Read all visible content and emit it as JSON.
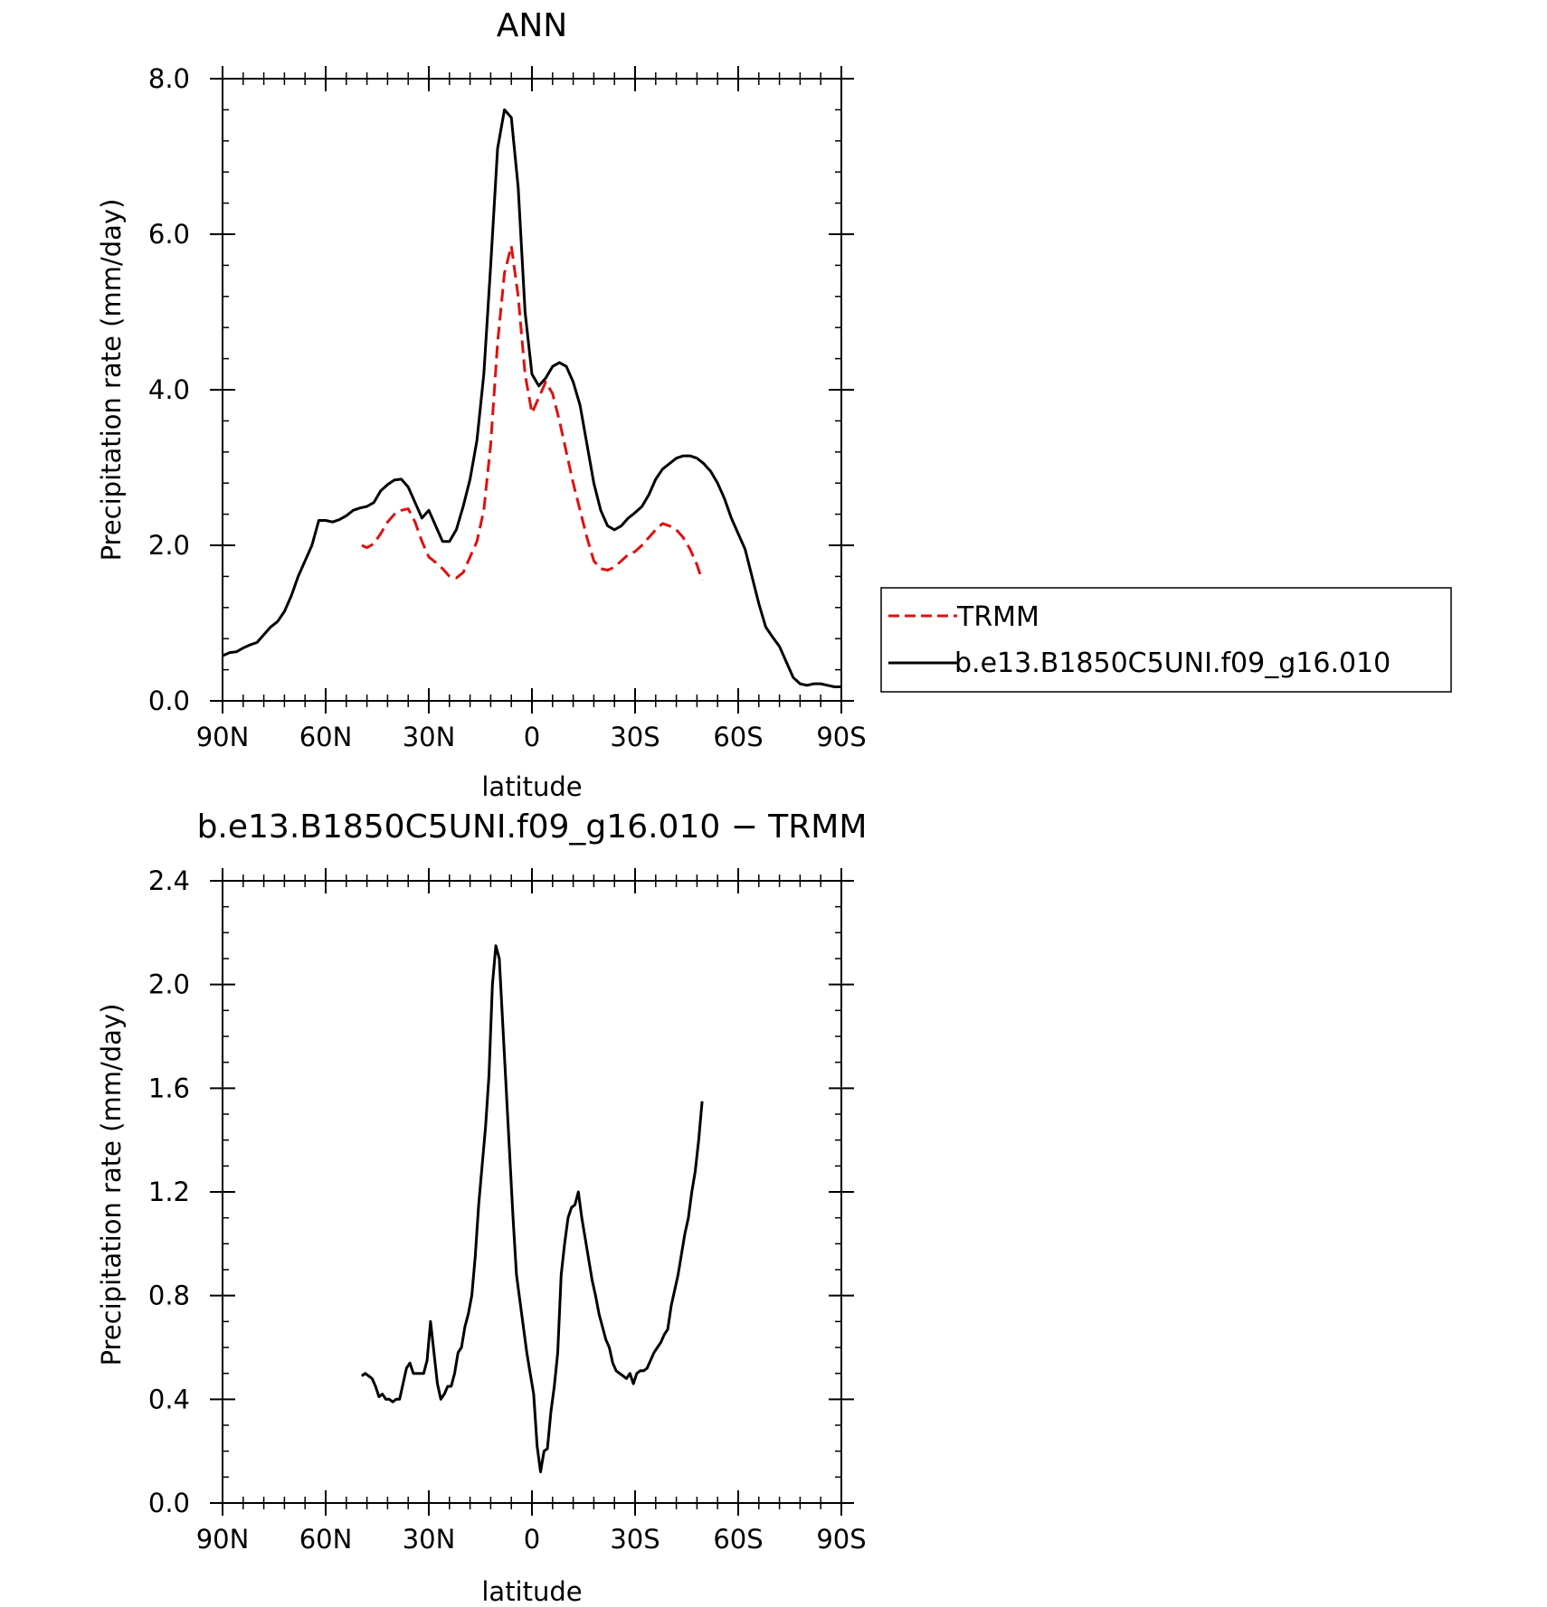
{
  "chart_data": [
    {
      "type": "line",
      "title": "ANN",
      "xlabel": "latitude",
      "ylabel": "Precipitation rate (mm/day)",
      "xlim": [
        90,
        -90
      ],
      "ylim": [
        0,
        8
      ],
      "x_ticks": [
        90,
        60,
        30,
        0,
        -30,
        -60,
        -90
      ],
      "x_tick_labels": [
        "90N",
        "60N",
        "30N",
        "0",
        "30S",
        "60S",
        "90S"
      ],
      "y_ticks": [
        0,
        2,
        4,
        6,
        8
      ],
      "y_tick_labels": [
        "0.0",
        "2.0",
        "4.0",
        "6.0",
        "8.0"
      ],
      "grid": false,
      "legend_position": "right",
      "series": [
        {
          "name": "TRMM",
          "color": "#e01010",
          "style": "dashed",
          "x": [
            49.5,
            48,
            46,
            44,
            42,
            40,
            38,
            36,
            34,
            32,
            30,
            28,
            26,
            24,
            22,
            20,
            18,
            16,
            14,
            12,
            10,
            8,
            6,
            4,
            2,
            0,
            -2,
            -4,
            -6,
            -8,
            -10,
            -12,
            -14,
            -16,
            -18,
            -20,
            -22,
            -24,
            -26,
            -28,
            -30,
            -32,
            -34,
            -36,
            -38,
            -40,
            -42,
            -44,
            -46,
            -48,
            -49.5
          ],
          "y": [
            2.0,
            1.97,
            2.02,
            2.15,
            2.3,
            2.4,
            2.45,
            2.47,
            2.3,
            2.05,
            1.85,
            1.78,
            1.7,
            1.6,
            1.58,
            1.65,
            1.85,
            2.05,
            2.45,
            3.3,
            4.6,
            5.5,
            5.85,
            5.2,
            4.2,
            3.7,
            3.9,
            4.1,
            3.95,
            3.6,
            3.2,
            2.8,
            2.45,
            2.1,
            1.8,
            1.7,
            1.68,
            1.72,
            1.8,
            1.88,
            1.92,
            2.0,
            2.1,
            2.2,
            2.28,
            2.25,
            2.2,
            2.1,
            1.95,
            1.75,
            1.55
          ]
        },
        {
          "name": "b.e13.B1850C5UNI.f09_g16.010",
          "color": "#000000",
          "style": "solid",
          "x": [
            90,
            88,
            86,
            84,
            82,
            80,
            78,
            76,
            74,
            72,
            70,
            68,
            66,
            64,
            62,
            60,
            58,
            56,
            54,
            52,
            50,
            48,
            46,
            44,
            42,
            40,
            38,
            36,
            34,
            32,
            30,
            28,
            26,
            24,
            22,
            20,
            18,
            16,
            14,
            12,
            10,
            8,
            6,
            4,
            2,
            0,
            -2,
            -4,
            -6,
            -8,
            -10,
            -12,
            -14,
            -16,
            -18,
            -20,
            -22,
            -24,
            -26,
            -28,
            -30,
            -32,
            -34,
            -36,
            -38,
            -40,
            -42,
            -44,
            -46,
            -48,
            -50,
            -52,
            -54,
            -56,
            -58,
            -60,
            -62,
            -64,
            -66,
            -68,
            -70,
            -72,
            -74,
            -76,
            -78,
            -80,
            -82,
            -84,
            -86,
            -88,
            -90
          ],
          "y": [
            0.58,
            0.62,
            0.63,
            0.68,
            0.72,
            0.75,
            0.85,
            0.95,
            1.02,
            1.15,
            1.35,
            1.6,
            1.8,
            2.0,
            2.32,
            2.32,
            2.3,
            2.33,
            2.38,
            2.45,
            2.48,
            2.5,
            2.55,
            2.7,
            2.78,
            2.84,
            2.85,
            2.75,
            2.55,
            2.35,
            2.45,
            2.25,
            2.05,
            2.05,
            2.2,
            2.5,
            2.85,
            3.35,
            4.2,
            5.6,
            7.1,
            7.6,
            7.5,
            6.6,
            5.0,
            4.2,
            4.05,
            4.15,
            4.3,
            4.35,
            4.3,
            4.1,
            3.8,
            3.3,
            2.8,
            2.45,
            2.25,
            2.2,
            2.25,
            2.35,
            2.42,
            2.5,
            2.65,
            2.85,
            2.98,
            3.05,
            3.12,
            3.15,
            3.15,
            3.12,
            3.05,
            2.95,
            2.8,
            2.6,
            2.35,
            2.15,
            1.95,
            1.6,
            1.25,
            0.95,
            0.82,
            0.7,
            0.5,
            0.3,
            0.22,
            0.2,
            0.22,
            0.22,
            0.2,
            0.18,
            0.18
          ]
        }
      ]
    },
    {
      "type": "line",
      "title": "b.e13.B1850C5UNI.f09_g16.010 − TRMM",
      "xlabel": "latitude",
      "ylabel": "Precipitation rate (mm/day)",
      "xlim": [
        90,
        -90
      ],
      "ylim": [
        0,
        2.4
      ],
      "x_ticks": [
        90,
        60,
        30,
        0,
        -30,
        -60,
        -90
      ],
      "x_tick_labels": [
        "90N",
        "60N",
        "30N",
        "0",
        "30S",
        "60S",
        "90S"
      ],
      "y_ticks": [
        0,
        0.4,
        0.8,
        1.2,
        1.6,
        2.0,
        2.4
      ],
      "y_tick_labels": [
        "0.0",
        "0.4",
        "0.8",
        "1.2",
        "1.6",
        "2.0",
        "2.4"
      ],
      "grid": false,
      "series": [
        {
          "color": "#000000",
          "style": "solid",
          "x": [
            49.5,
            48.5,
            47.5,
            46.5,
            45.5,
            44.5,
            43.5,
            42.5,
            41.5,
            40.5,
            39.5,
            38.5,
            37.5,
            36.5,
            35.5,
            34.5,
            33.5,
            32.5,
            31.5,
            30.5,
            29.5,
            28.5,
            27.5,
            26.5,
            25.5,
            24.5,
            23.5,
            22.5,
            21.5,
            20.5,
            19.5,
            18.5,
            17.5,
            16.5,
            15.5,
            14.5,
            13.5,
            12.5,
            11.5,
            10.5,
            9.5,
            8.5,
            7.5,
            6.5,
            5.5,
            4.5,
            3.5,
            2.5,
            1.5,
            0.5,
            -0.5,
            -1.5,
            -2.5,
            -3.5,
            -4.5,
            -5.5,
            -6.5,
            -7.5,
            -8.5,
            -9.5,
            -10.5,
            -11.5,
            -12.5,
            -13.5,
            -14.5,
            -15.5,
            -16.5,
            -17.5,
            -18.5,
            -19.5,
            -20.5,
            -21.5,
            -22.5,
            -23.5,
            -24.5,
            -25.5,
            -26.5,
            -27.5,
            -28.5,
            -29.5,
            -30.5,
            -31.5,
            -32.5,
            -33.5,
            -34.5,
            -35.5,
            -36.5,
            -37.5,
            -38.5,
            -39.5,
            -40.5,
            -41.5,
            -42.5,
            -43.5,
            -44.5,
            -45.5,
            -46.5,
            -47.5,
            -48.5,
            -49.5
          ],
          "y": [
            0.49,
            0.5,
            0.49,
            0.48,
            0.45,
            0.41,
            0.42,
            0.4,
            0.4,
            0.39,
            0.4,
            0.4,
            0.46,
            0.52,
            0.54,
            0.5,
            0.5,
            0.5,
            0.5,
            0.55,
            0.7,
            0.58,
            0.46,
            0.4,
            0.42,
            0.45,
            0.45,
            0.5,
            0.58,
            0.6,
            0.68,
            0.73,
            0.8,
            0.95,
            1.15,
            1.3,
            1.45,
            1.65,
            2.0,
            2.15,
            2.1,
            1.85,
            1.6,
            1.35,
            1.1,
            0.88,
            0.78,
            0.68,
            0.58,
            0.5,
            0.42,
            0.22,
            0.12,
            0.2,
            0.21,
            0.35,
            0.45,
            0.58,
            0.88,
            1.0,
            1.1,
            1.14,
            1.15,
            1.2,
            1.1,
            1.02,
            0.94,
            0.86,
            0.8,
            0.73,
            0.68,
            0.63,
            0.6,
            0.54,
            0.51,
            0.5,
            0.49,
            0.48,
            0.5,
            0.46,
            0.5,
            0.51,
            0.51,
            0.52,
            0.55,
            0.58,
            0.6,
            0.62,
            0.65,
            0.67,
            0.76,
            0.82,
            0.88,
            0.96,
            1.04,
            1.1,
            1.2,
            1.28,
            1.4,
            1.55
          ]
        }
      ]
    }
  ]
}
